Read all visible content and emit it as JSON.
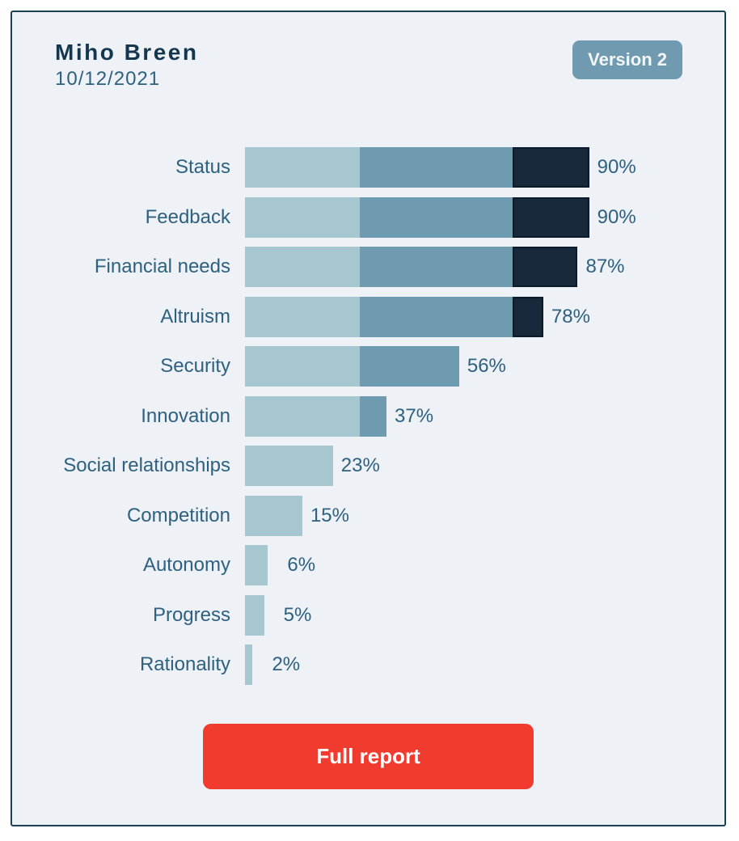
{
  "card": {
    "background": "#eef1f6",
    "border_color": "#1d4154"
  },
  "header": {
    "name": "Miho Breen",
    "date": "10/12/2021",
    "version_badge": "Version 2",
    "badge_color": "#6f9ab0"
  },
  "chart_data": {
    "type": "bar",
    "orientation": "horizontal",
    "title": "",
    "xlabel": "",
    "ylabel": "",
    "xlim": [
      0,
      100
    ],
    "grid": false,
    "legend": "none",
    "categories": [
      "Status",
      "Feedback",
      "Financial needs",
      "Altruism",
      "Security",
      "Innovation",
      "Social relationships",
      "Competition",
      "Autonomy",
      "Progress",
      "Rationality"
    ],
    "values": [
      90,
      90,
      87,
      78,
      56,
      37,
      23,
      15,
      6,
      5,
      2
    ],
    "value_labels": [
      "90%",
      "90%",
      "87%",
      "78%",
      "56%",
      "37%",
      "23%",
      "15%",
      "6%",
      "5%",
      "2%"
    ],
    "segment_thresholds": [
      30,
      70
    ],
    "segment_colors": [
      "#a6c7d0",
      "#6f9bb1",
      "#17293a"
    ],
    "segment_names": [
      "low-0-30",
      "mid-30-70",
      "high-70-100"
    ],
    "label_color": "#2e6180"
  },
  "footer": {
    "full_report_label": "Full report",
    "button_color": "#f23b2f"
  }
}
